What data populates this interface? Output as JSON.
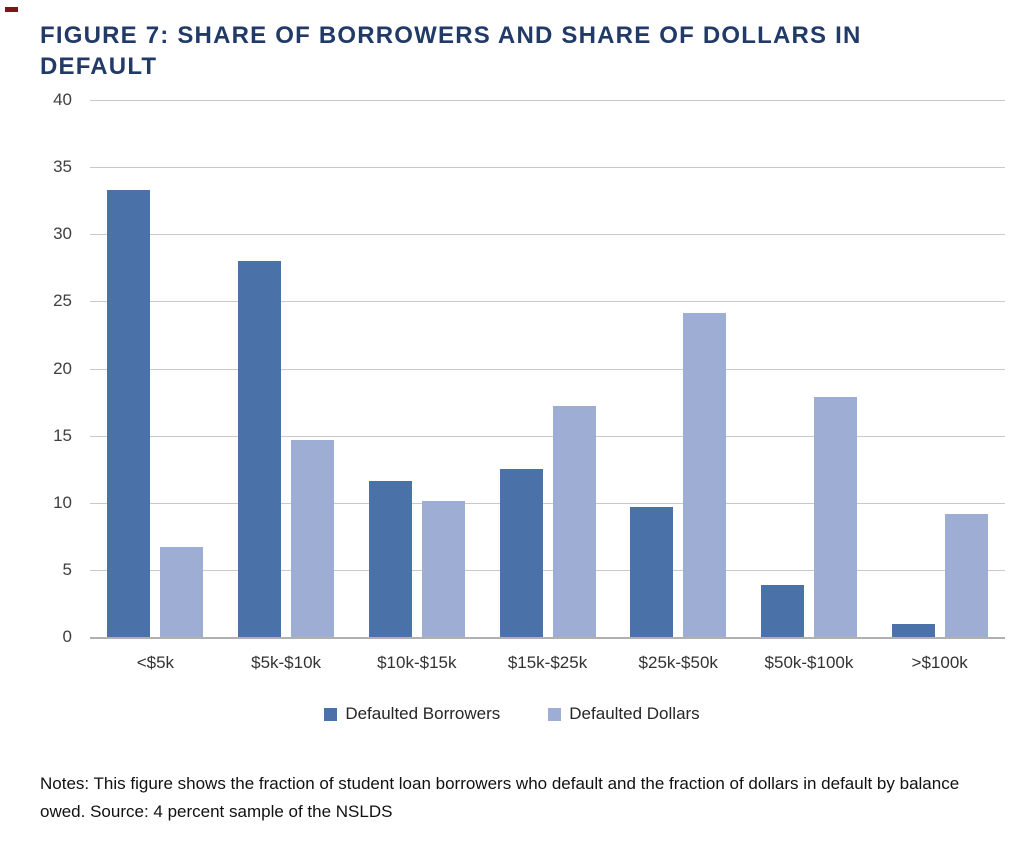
{
  "figure": {
    "title": "FIGURE 7: SHARE OF BORROWERS AND SHARE OF DOLLARS IN DEFAULT",
    "notes": "Notes: This figure shows the fraction of student loan borrowers who default and the fraction of dollars in default by balance owed. Source: 4 percent sample of the NSLDS"
  },
  "colors": {
    "title_text": "#213a68",
    "borrowers_bar": "#4b72a8",
    "dollars_bar": "#9dadd3",
    "gridline": "#c9c9c9",
    "baseline": "#b0b0b0",
    "axis_text": "#404040",
    "notes_text": "#111111"
  },
  "chart_data": {
    "type": "bar",
    "title": "FIGURE 7: SHARE OF BORROWERS AND SHARE OF DOLLARS IN DEFAULT",
    "categories": [
      "<$5k",
      "$5k-$10k",
      "$10k-$15k",
      "$15k-$25k",
      "$25k-$50k",
      "$50k-$100k",
      ">$100k"
    ],
    "series": [
      {
        "name": "Defaulted Borrowers",
        "color": "#4b72a8",
        "values": [
          33.3,
          28.0,
          11.6,
          12.5,
          9.7,
          3.9,
          1.0
        ]
      },
      {
        "name": "Defaulted Dollars",
        "color": "#9dadd3",
        "values": [
          6.7,
          14.7,
          10.1,
          17.2,
          24.1,
          17.9,
          9.2
        ]
      }
    ],
    "xlabel": "",
    "ylabel": "",
    "ylim": [
      0,
      40
    ],
    "ytick_step": 5,
    "yticks": [
      40,
      35,
      30,
      25,
      20,
      15,
      10,
      5,
      0
    ],
    "grid": "horizontal",
    "legend_position": "bottom"
  }
}
